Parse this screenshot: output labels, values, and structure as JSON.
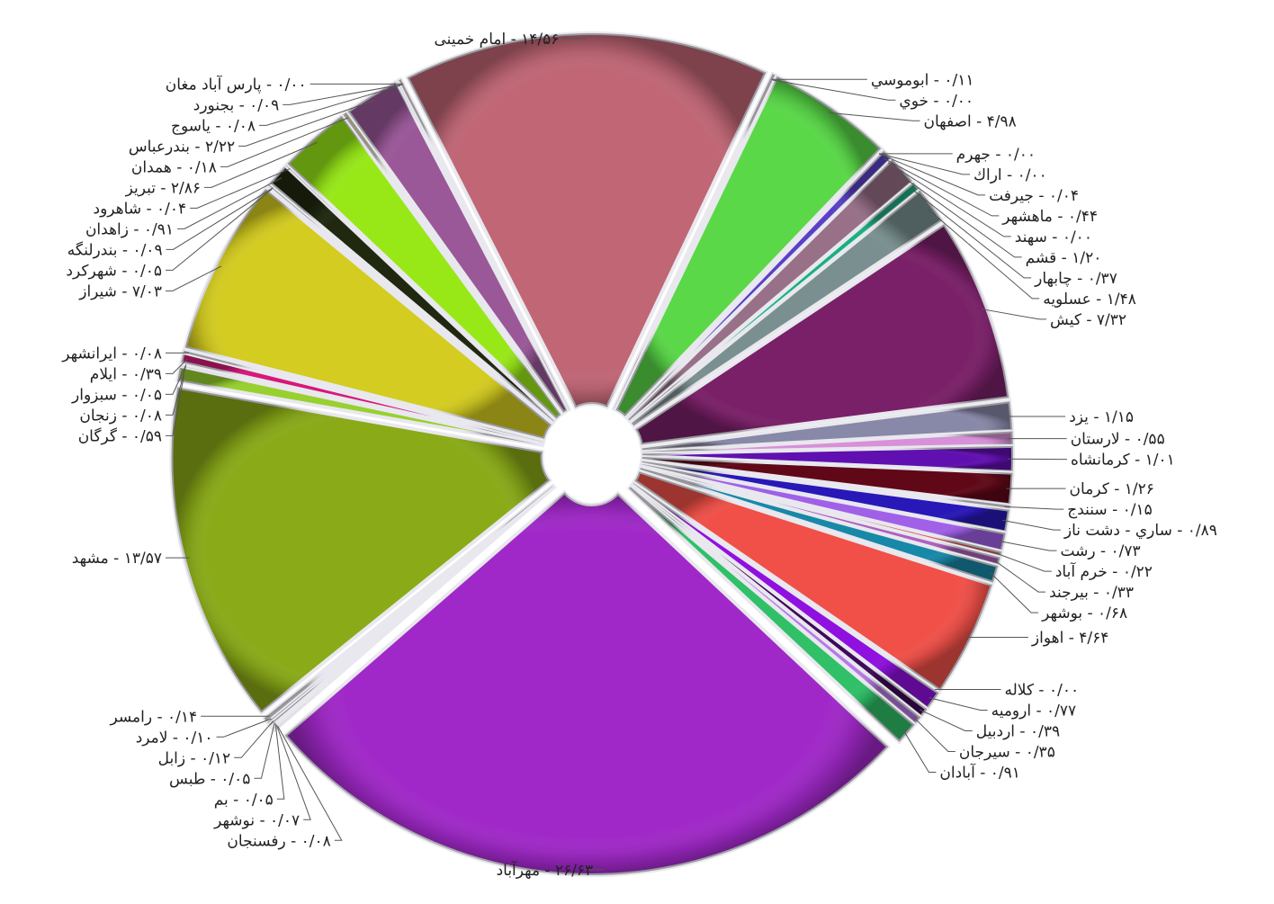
{
  "chart_data": {
    "type": "pie",
    "title": "",
    "legend": "none",
    "slices": [
      {
        "label": "امام خمینی",
        "value": 14.56,
        "display": "۱۴/۵۶ - امام خمینی",
        "color": "#c06675"
      },
      {
        "label": "ابوموسی",
        "value": 0.11,
        "display": "۰/۱۱ - ابوموسي",
        "color": "#a088d8"
      },
      {
        "label": "خوی",
        "value": 0.0,
        "display": "۰/۰۰ - خوي",
        "color": "#c8c0e8"
      },
      {
        "label": "اصفهان",
        "value": 4.98,
        "display": "۴/۹۸ - اصفهان",
        "color": "#5ad848"
      },
      {
        "label": "جهرم",
        "value": 0.0,
        "display": "۰/۰۰ - جهرم",
        "color": "#b0b0d0"
      },
      {
        "label": "اراک",
        "value": 0.0,
        "display": "۰/۰۰ - اراك",
        "color": "#9898c8"
      },
      {
        "label": "جیرفت",
        "value": 0.04,
        "display": "۰/۰۴ - جيرفت",
        "color": "#8888e0"
      },
      {
        "label": "ماهشهر",
        "value": 0.44,
        "display": "۰/۴۴ - ماهشهر",
        "color": "#5a40c8"
      },
      {
        "label": "سهند",
        "value": 0.0,
        "display": "۰/۰۰ - سهند",
        "color": "#c0c0c0"
      },
      {
        "label": "قشم",
        "value": 1.2,
        "display": "۱/۲۰ - قشم",
        "color": "#987088"
      },
      {
        "label": "چابهار",
        "value": 0.37,
        "display": "۰/۳۷ - چابهار",
        "color": "#18b080"
      },
      {
        "label": "عسلویه",
        "value": 1.48,
        "display": "۱/۴۸ - عسلويه",
        "color": "#7a9090"
      },
      {
        "label": "کیش",
        "value": 7.32,
        "display": "۷/۳۲ - كيش",
        "color": "#7a2068"
      },
      {
        "label": "یزد",
        "value": 1.15,
        "display": "۱/۱۵ - يزد",
        "color": "#8888a8"
      },
      {
        "label": "لارستان",
        "value": 0.55,
        "display": "۰/۵۵ - لارستان",
        "color": "#d890d8"
      },
      {
        "label": "کرمانشاه",
        "value": 1.01,
        "display": "۱/۰۱ - كرمانشاه",
        "color": "#6010b0"
      },
      {
        "label": "کرمان",
        "value": 1.26,
        "display": "۱/۲۶ - كرمان",
        "color": "#600818"
      },
      {
        "label": "سنندج",
        "value": 0.15,
        "display": "۰/۱۵ - سنندج",
        "color": "#c8a8e8"
      },
      {
        "label": "ساری - دشت ناز",
        "value": 0.89,
        "display": "۰/۸۹ - ساري - دشت ناز",
        "color": "#2818b8"
      },
      {
        "label": "رشت",
        "value": 0.73,
        "display": "۰/۷۳ - رشت",
        "color": "#a060e8"
      },
      {
        "label": "خرم آباد",
        "value": 0.22,
        "display": "۰/۲۲ - خرم آباد",
        "color": "#e05858"
      },
      {
        "label": "بیرجند",
        "value": 0.33,
        "display": "۰/۳۳ - بيرجند",
        "color": "#b060c0"
      },
      {
        "label": "بوشهر",
        "value": 0.68,
        "display": "۰/۶۸ - بوشهر",
        "color": "#1888a8"
      },
      {
        "label": "اهواز",
        "value": 4.64,
        "display": "۴/۶۴ - اهواز",
        "color": "#f05048"
      },
      {
        "label": "کلاله",
        "value": 0.0,
        "display": "۰/۰۰ - كلاله",
        "color": "#c8a0e0"
      },
      {
        "label": "ارومیه",
        "value": 0.77,
        "display": "۰/۷۷ - اروميه",
        "color": "#9010e0"
      },
      {
        "label": "اردبیل",
        "value": 0.39,
        "display": "۰/۳۹ - اردبيل",
        "color": "#400858"
      },
      {
        "label": "سیرجان",
        "value": 0.35,
        "display": "۰/۳۵ - سيرجان",
        "color": "#b878e8"
      },
      {
        "label": "آبادان",
        "value": 0.91,
        "display": "۰/۹۱ - آبادان",
        "color": "#30c068"
      },
      {
        "label": "مهرآباد",
        "value": 26.63,
        "display": "۲۶/۶۳ - مهرآباد",
        "color": "#a028c8"
      },
      {
        "label": "رفسنجان",
        "value": 0.08,
        "display": "۰/۰۸ - رفسنجان",
        "color": "#a8c8e0"
      },
      {
        "label": "نوشهر",
        "value": 0.07,
        "display": "۰/۰۷ - نوشهر",
        "color": "#d0e8a0"
      },
      {
        "label": "بم",
        "value": 0.05,
        "display": "۰/۰۵ - بم",
        "color": "#e8e890"
      },
      {
        "label": "طبس",
        "value": 0.05,
        "display": "۰/۰۵ - طبس",
        "color": "#d8c8a0"
      },
      {
        "label": "زابل",
        "value": 0.12,
        "display": "۰/۱۲ - زابل",
        "color": "#a0b8c0"
      },
      {
        "label": "لامرد",
        "value": 0.1,
        "display": "۰/۱۰ - لامرد",
        "color": "#c8d8e8"
      },
      {
        "label": "رامسر",
        "value": 0.14,
        "display": "۰/۱۴ - رامسر",
        "color": "#90a8b0"
      },
      {
        "label": "مشهد",
        "value": 13.57,
        "display": "۱۳/۵۷ - مشهد",
        "color": "#8aaa18"
      },
      {
        "label": "گرگان",
        "value": 0.59,
        "display": "۰/۵۹ - گرگان",
        "color": "#98d030"
      },
      {
        "label": "زنجان",
        "value": 0.08,
        "display": "۰/۰۸ - زنجان",
        "color": "#e8b8c8"
      },
      {
        "label": "سبزوار",
        "value": 0.05,
        "display": "۰/۰۵ - سبزوار",
        "color": "#d0a0c0"
      },
      {
        "label": "ایلام",
        "value": 0.39,
        "display": "۰/۳۹ - ايلام",
        "color": "#d81878"
      },
      {
        "label": "ایرانشهر",
        "value": 0.08,
        "display": "۰/۰۸ - ايرانشهر",
        "color": "#b8b8d8"
      },
      {
        "label": "شیراز",
        "value": 7.03,
        "display": "۷/۰۳ - شيراز",
        "color": "#d4cc20"
      },
      {
        "label": "شهرکرد",
        "value": 0.05,
        "display": "۰/۰۵ - شهركرد",
        "color": "#c8c8a8"
      },
      {
        "label": "بندرلنگه",
        "value": 0.09,
        "display": "۰/۰۹ - بندرلنگه",
        "color": "#e0e0c0"
      },
      {
        "label": "زاهدان",
        "value": 0.91,
        "display": "۰/۹۱ - زاهدان",
        "color": "#202810"
      },
      {
        "label": "شاهرود",
        "value": 0.04,
        "display": "۰/۰۴ - شاهرود",
        "color": "#b0b0b0"
      },
      {
        "label": "تبریز",
        "value": 2.86,
        "display": "۲/۸۶ - تبريز",
        "color": "#98e818"
      },
      {
        "label": "همدان",
        "value": 0.18,
        "display": "۰/۱۸ - همدان",
        "color": "#e8e050"
      },
      {
        "label": "بندرعباس",
        "value": 2.22,
        "display": "۲/۲۲ - بندرعباس",
        "color": "#9a5898"
      },
      {
        "label": "یاسوج",
        "value": 0.08,
        "display": "۰/۰۸ - ياسوج",
        "color": "#a8d8e8"
      },
      {
        "label": "بجنورد",
        "value": 0.09,
        "display": "۰/۰۹ - بجنورد",
        "color": "#c8c8d8"
      },
      {
        "label": "پارس آباد مغان",
        "value": 0.0,
        "display": "۰/۰۰ - پارس آباد مغان",
        "color": "#98c8d8"
      }
    ]
  }
}
